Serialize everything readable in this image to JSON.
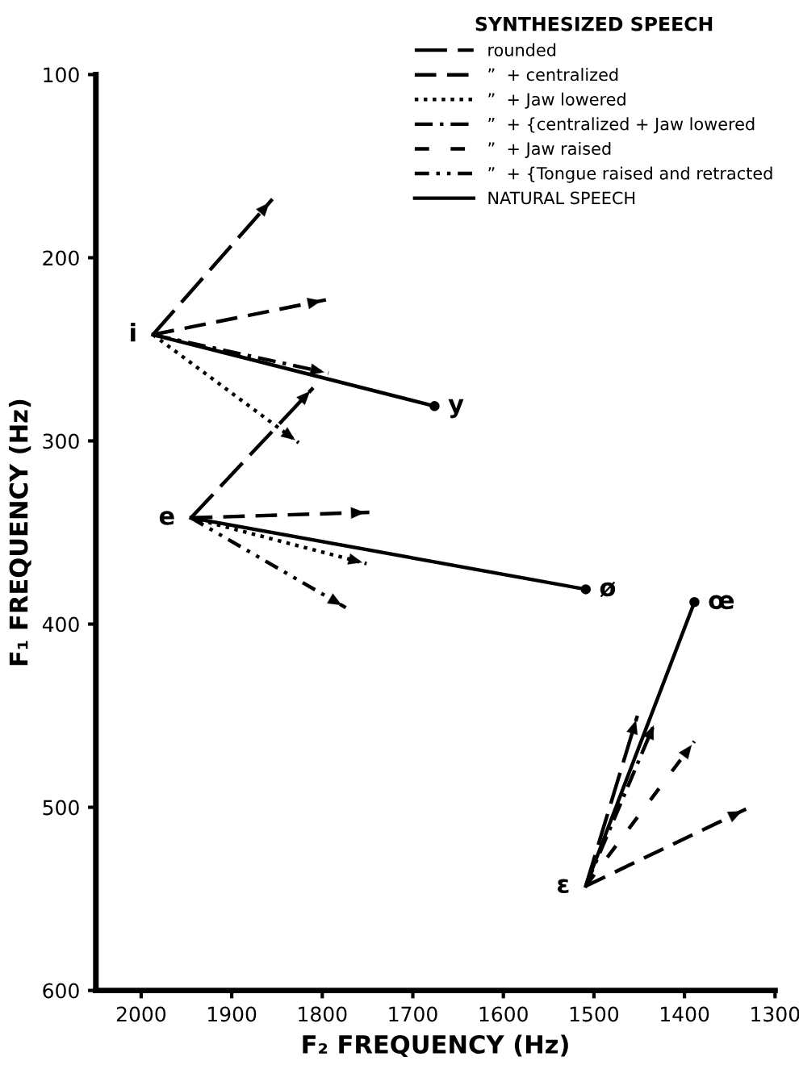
{
  "chart_data": {
    "type": "line",
    "xlabel": "F₂ FREQUENCY (Hz)",
    "ylabel": "F₁ FREQUENCY (Hz)",
    "legend_title": "SYNTHESIZED SPEECH",
    "legend": "top right",
    "xlim": [
      2050,
      1300
    ],
    "xticks": [
      2000,
      1900,
      1800,
      1700,
      1600,
      1500,
      1400,
      1300
    ],
    "ylim": [
      600,
      100
    ],
    "yticks": [
      100,
      200,
      300,
      400,
      500,
      600
    ],
    "grid": false,
    "series": [
      {
        "name": "rounded",
        "color": "#000000",
        "line_style": "longdash",
        "x": [
          1987,
          1855,
          null,
          1945,
          1810,
          null,
          1509,
          1452
        ],
        "values": [
          242,
          168,
          null,
          342,
          271,
          null,
          543,
          450
        ]
      },
      {
        "name": "”  + centralized",
        "color": "#000000",
        "line_style": "dashed",
        "x": [
          1987,
          1796,
          null,
          1945,
          1748,
          null,
          1509,
          1332
        ],
        "values": [
          242,
          223,
          null,
          342,
          339,
          null,
          543,
          501
        ]
      },
      {
        "name": "”  + Jaw lowered",
        "color": "#000000",
        "line_style": "dotted",
        "x": [
          1987,
          1826,
          null,
          1945,
          1751
        ],
        "values": [
          242,
          301,
          null,
          342,
          367
        ]
      },
      {
        "name": "”  + {centralized + Jaw lowered",
        "color": "#000000",
        "line_style": "dashdot",
        "x": [
          1987,
          1793,
          null,
          1509,
          1432
        ],
        "values": [
          242,
          263,
          null,
          543,
          453
        ]
      },
      {
        "name": "”  + Jaw raised",
        "color": "#000000",
        "line_style": "sparsedash",
        "x": [
          1509,
          1389
        ],
        "values": [
          543,
          464
        ]
      },
      {
        "name": "”  + {Tongue raised and retracted",
        "color": "#000000",
        "line_style": "dashdotdot",
        "x": [
          1945,
          1774
        ],
        "values": [
          342,
          391
        ]
      },
      {
        "name": "NATURAL SPEECH",
        "color": "#000000",
        "line_style": "solid",
        "marker": "circle",
        "x": [
          1987,
          1676,
          null,
          1945,
          1509,
          null,
          1509,
          1389
        ],
        "values": [
          242,
          281,
          null,
          342,
          381,
          null,
          543,
          388
        ]
      }
    ],
    "annotations": [
      {
        "text": "i",
        "x": 1987,
        "y": 242
      },
      {
        "text": "y",
        "x": 1676,
        "y": 281
      },
      {
        "text": "e",
        "x": 1945,
        "y": 342
      },
      {
        "text": "ø",
        "x": 1509,
        "y": 381
      },
      {
        "text": "ɛ",
        "x": 1509,
        "y": 543
      },
      {
        "text": "œ",
        "x": 1389,
        "y": 388
      }
    ]
  }
}
